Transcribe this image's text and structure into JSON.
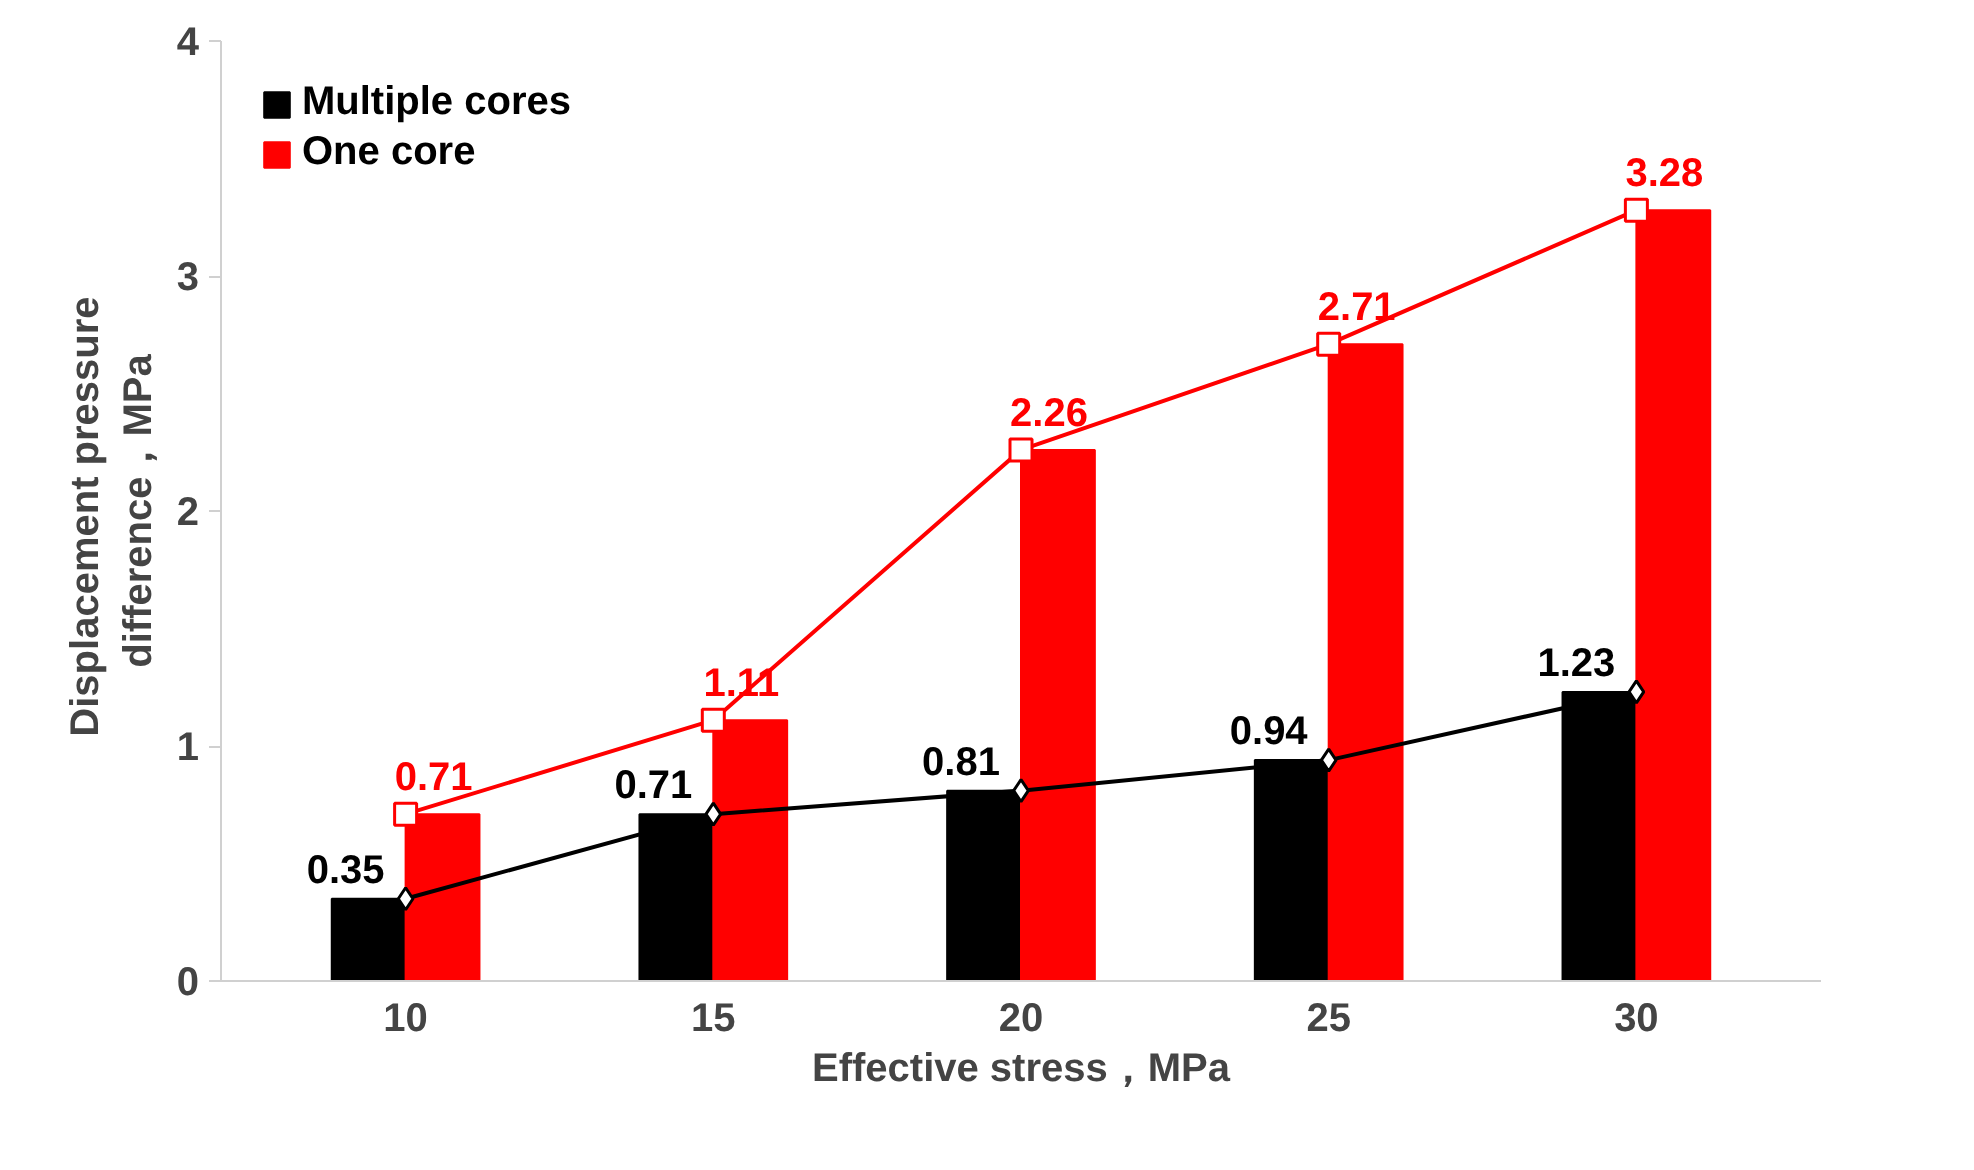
{
  "chart_data": {
    "type": "bar",
    "xlabel": "Effective stress，MPa",
    "ylabel": "Displacement  pressure\ndifference，MPa",
    "categories": [
      "10",
      "15",
      "20",
      "25",
      "30"
    ],
    "series": [
      {
        "name": "Multiple cores",
        "color": "#000000",
        "values": [
          0.35,
          0.71,
          0.81,
          0.94,
          1.23
        ]
      },
      {
        "name": "One core",
        "color": "#ff0000",
        "values": [
          0.71,
          1.11,
          2.26,
          2.71,
          3.28
        ]
      },
      {
        "type": "line",
        "color": "#000000",
        "marker": "diamond",
        "values": [
          0.35,
          0.71,
          0.81,
          0.94,
          1.23
        ],
        "value_labels": [
          "0.35",
          "0.71",
          "0.81",
          "0.94",
          "1.23"
        ]
      },
      {
        "type": "line",
        "color": "#ff0000",
        "marker": "square",
        "values": [
          0.71,
          1.11,
          2.26,
          2.71,
          3.28
        ],
        "value_labels": [
          "0.71",
          "1.11",
          "2.26",
          "2.71",
          "3.28"
        ]
      }
    ],
    "ylim": [
      0,
      4
    ],
    "yticks": [
      0,
      1,
      2,
      3,
      4
    ],
    "grid": false,
    "legend": "top left"
  }
}
